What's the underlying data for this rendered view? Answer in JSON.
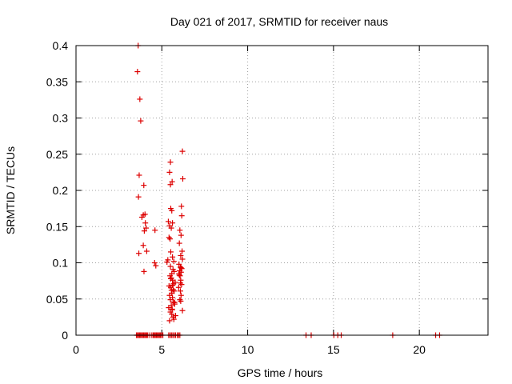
{
  "chart_data": {
    "type": "scatter",
    "title": "Day 021 of 2017, SRMTID for receiver naus",
    "xlabel": "GPS time / hours",
    "ylabel": "SRMTID / TECUs",
    "xlim": [
      0,
      24
    ],
    "ylim": [
      0,
      0.4
    ],
    "xticks": [
      0,
      5,
      10,
      15,
      20
    ],
    "xtick_labels": [
      "0",
      "5",
      "10",
      "15",
      "20"
    ],
    "yticks": [
      0,
      0.05,
      0.1,
      0.15,
      0.2,
      0.25,
      0.3,
      0.35,
      0.4
    ],
    "ytick_labels": [
      "0",
      "0.05",
      "0.1",
      "0.15",
      "0.2",
      "0.25",
      "0.3",
      "0.35",
      "0.4"
    ],
    "grid": true,
    "marker": "+",
    "color": "#dd0000",
    "series": [
      {
        "name": "SRMTID",
        "x": [
          3.62,
          3.58,
          3.72,
          3.77,
          3.68,
          3.64,
          3.95,
          4.02,
          3.92,
          3.84,
          4.04,
          4.08,
          3.98,
          3.92,
          3.66,
          4.12,
          3.96,
          4.6,
          4.58,
          4.65,
          5.5,
          5.45,
          5.6,
          5.5,
          5.52,
          5.58,
          5.62,
          5.38,
          5.45,
          5.55,
          5.42,
          5.48,
          5.52,
          5.62,
          5.7,
          5.35,
          5.3,
          5.5,
          5.65,
          5.72,
          5.58,
          5.48,
          5.55,
          5.62,
          5.78,
          5.68,
          5.42,
          5.52,
          5.66,
          5.72,
          5.58,
          5.45,
          5.62,
          5.5,
          5.68,
          5.75,
          5.55,
          5.4,
          5.6,
          5.5,
          5.58,
          5.8,
          5.66,
          5.7,
          5.45,
          5.52,
          5.62,
          5.56,
          5.74,
          5.6,
          6.2,
          6.22,
          6.14,
          6.16,
          6.05,
          6.12,
          6.02,
          6.18,
          6.1,
          6.2,
          6.0,
          6.08,
          6.16,
          6.04,
          6.12,
          6.0,
          6.06,
          6.1,
          6.15,
          5.98,
          6.08,
          6.12,
          6.05,
          6.1,
          6.2,
          6.08,
          6.02,
          6.12,
          3.52,
          3.58,
          3.64,
          3.7,
          3.76,
          3.82,
          3.88,
          3.94,
          4.0,
          4.06,
          4.12,
          4.18,
          4.3,
          4.42,
          4.5,
          4.56,
          4.62,
          4.68,
          4.74,
          4.8,
          4.86,
          4.92,
          4.98,
          5.06,
          5.4,
          5.48,
          5.56,
          5.64,
          5.72,
          5.8,
          5.9,
          5.98,
          6.05,
          13.4,
          13.7,
          15.02,
          15.25,
          15.45,
          18.45,
          20.95,
          21.18
        ],
        "y": [
          0.4,
          0.364,
          0.326,
          0.296,
          0.221,
          0.191,
          0.207,
          0.167,
          0.166,
          0.163,
          0.155,
          0.148,
          0.144,
          0.124,
          0.113,
          0.116,
          0.088,
          0.145,
          0.1,
          0.096,
          0.239,
          0.225,
          0.212,
          0.208,
          0.175,
          0.172,
          0.155,
          0.157,
          0.151,
          0.148,
          0.135,
          0.133,
          0.115,
          0.108,
          0.102,
          0.104,
          0.101,
          0.095,
          0.091,
          0.088,
          0.085,
          0.082,
          0.079,
          0.076,
          0.073,
          0.071,
          0.068,
          0.066,
          0.063,
          0.061,
          0.058,
          0.055,
          0.052,
          0.049,
          0.046,
          0.043,
          0.041,
          0.038,
          0.035,
          0.032,
          0.029,
          0.027,
          0.025,
          0.022,
          0.02,
          0.078,
          0.069,
          0.062,
          0.045,
          0.036,
          0.254,
          0.216,
          0.178,
          0.165,
          0.145,
          0.138,
          0.127,
          0.116,
          0.11,
          0.105,
          0.098,
          0.094,
          0.092,
          0.089,
          0.087,
          0.085,
          0.082,
          0.076,
          0.07,
          0.066,
          0.061,
          0.055,
          0.049,
          0.047,
          0.034,
          0.072,
          0.083,
          0.093,
          0,
          0,
          0,
          0,
          0,
          0,
          0,
          0,
          0,
          0,
          0,
          0,
          0,
          0,
          0,
          0,
          0,
          0,
          0,
          0,
          0,
          0,
          0,
          0,
          0,
          0,
          0,
          0,
          0,
          0,
          0,
          0,
          0,
          0,
          0,
          0,
          0,
          0,
          0,
          0,
          0
        ]
      }
    ]
  }
}
